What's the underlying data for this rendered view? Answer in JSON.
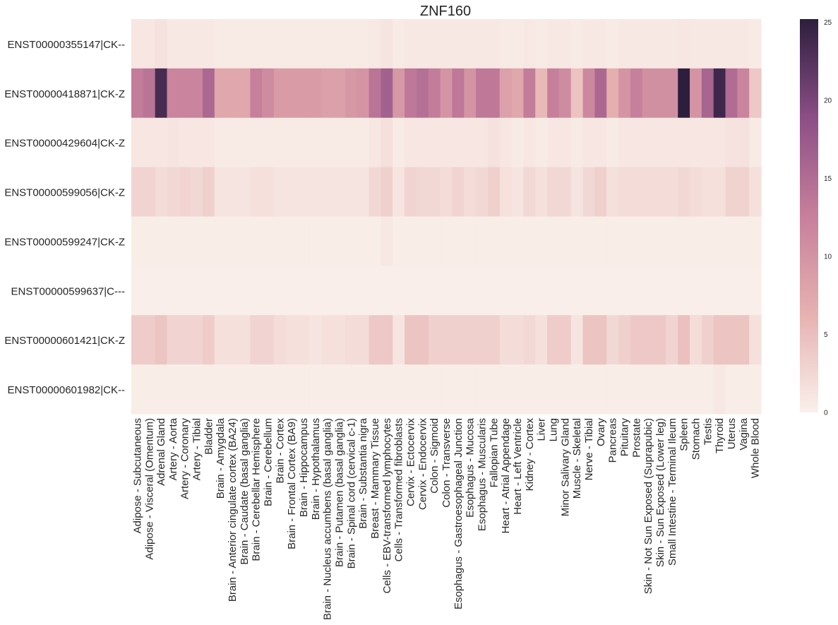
{
  "chart_data": {
    "type": "heatmap",
    "title": "ZNF160",
    "xlabel": "",
    "ylabel": "",
    "colorbar": {
      "range": [
        0,
        25.2
      ],
      "ticks": [
        0,
        5,
        10,
        15,
        20,
        25
      ],
      "colors": [
        "#faf0eb",
        "#e6b1b0",
        "#c77f9b",
        "#8c4e86",
        "#2d1e3e"
      ]
    },
    "rows": [
      "ENST00000355147|CK--",
      "ENST00000418871|CK-Z",
      "ENST00000429604|CK-Z",
      "ENST00000599056|CK-Z",
      "ENST00000599247|CK-Z",
      "ENST00000599637|C---",
      "ENST00000601421|CK-Z",
      "ENST00000601982|CK--"
    ],
    "columns": [
      "Adipose - Subcutaneous",
      "Adipose - Visceral (Omentum)",
      "Adrenal Gland",
      "Artery - Aorta",
      "Artery - Coronary",
      "Artery - Tibial",
      "Bladder",
      "Brain - Amygdala",
      "Brain - Anterior cingulate cortex (BA24)",
      "Brain - Caudate (basal ganglia)",
      "Brain - Cerebellar Hemisphere",
      "Brain - Cerebellum",
      "Brain - Cortex",
      "Brain - Frontal Cortex (BA9)",
      "Brain - Hippocampus",
      "Brain - Hypothalamus",
      "Brain - Nucleus accumbens (basal ganglia)",
      "Brain - Putamen (basal ganglia)",
      "Brain - Spinal cord (cervical c-1)",
      "Brain - Substantia nigra",
      "Breast - Mammary Tissue",
      "Cells - EBV-transformed lymphocytes",
      "Cells - Transformed fibroblasts",
      "Cervix - Ectocervix",
      "Cervix - Endocervix",
      "Colon - Sigmoid",
      "Colon - Transverse",
      "Esophagus - Gastroesophageal Junction",
      "Esophagus - Mucosa",
      "Esophagus - Muscularis",
      "Fallopian Tube",
      "Heart - Atrial Appendage",
      "Heart - Left Ventricle",
      "Kidney - Cortex",
      "Liver",
      "Lung",
      "Minor Salivary Gland",
      "Muscle - Skeletal",
      "Nerve - Tibial",
      "Ovary",
      "Pancreas",
      "Pituitary",
      "Prostate",
      "Skin - Not Sun Exposed (Suprapubic)",
      "Skin - Sun Exposed (Lower leg)",
      "Small Intestine - Terminal Ileum",
      "Spleen",
      "Stomach",
      "Testis",
      "Thyroid",
      "Uterus",
      "Vagina",
      "Whole Blood"
    ],
    "values": [
      [
        1.0,
        1.0,
        1.5,
        0.8,
        0.8,
        0.8,
        0.8,
        0.6,
        0.6,
        0.6,
        0.6,
        0.6,
        0.6,
        0.6,
        0.6,
        0.6,
        0.6,
        0.6,
        0.6,
        0.6,
        0.8,
        1.2,
        0.6,
        0.8,
        0.8,
        0.8,
        0.8,
        0.8,
        0.8,
        0.8,
        0.8,
        0.6,
        0.6,
        0.8,
        0.6,
        0.8,
        0.8,
        0.6,
        0.8,
        0.8,
        0.6,
        0.8,
        0.8,
        0.8,
        0.8,
        0.8,
        1.0,
        0.8,
        0.8,
        0.8,
        0.8,
        0.8,
        0.6
      ],
      [
        13.0,
        14.0,
        23.5,
        12.0,
        12.0,
        12.0,
        15.5,
        7.5,
        7.5,
        7.5,
        12.5,
        11.0,
        9.0,
        9.0,
        9.0,
        9.0,
        8.5,
        8.5,
        9.5,
        10.0,
        14.0,
        16.5,
        9.5,
        13.5,
        14.5,
        13.0,
        10.0,
        13.5,
        10.0,
        13.5,
        13.5,
        8.5,
        7.5,
        13.0,
        5.5,
        12.5,
        11.0,
        4.5,
        11.5,
        15.5,
        6.5,
        10.0,
        12.5,
        10.5,
        10.5,
        10.5,
        25.2,
        10.0,
        16.0,
        24.0,
        15.0,
        12.0,
        4.0
      ],
      [
        1.0,
        1.0,
        1.0,
        1.2,
        1.0,
        1.0,
        1.0,
        0.5,
        0.5,
        0.5,
        0.5,
        0.5,
        0.5,
        0.5,
        0.5,
        0.5,
        0.5,
        0.5,
        0.5,
        0.5,
        1.0,
        1.6,
        0.6,
        1.0,
        1.0,
        1.0,
        1.0,
        1.0,
        1.0,
        1.0,
        1.5,
        1.0,
        0.6,
        1.0,
        0.6,
        1.0,
        1.0,
        0.6,
        1.0,
        1.0,
        0.6,
        1.0,
        1.0,
        1.0,
        1.0,
        1.0,
        1.0,
        1.0,
        1.0,
        1.0,
        1.3,
        1.5,
        0.6
      ],
      [
        2.8,
        2.8,
        2.0,
        2.4,
        2.8,
        2.4,
        3.2,
        1.2,
        1.2,
        1.2,
        1.6,
        1.6,
        1.2,
        1.2,
        1.2,
        1.2,
        1.2,
        1.2,
        1.2,
        1.2,
        2.4,
        3.2,
        1.2,
        2.8,
        2.4,
        2.4,
        2.0,
        2.8,
        2.0,
        2.4,
        3.2,
        1.6,
        1.2,
        2.4,
        1.6,
        2.4,
        2.4,
        1.2,
        2.4,
        3.2,
        1.6,
        2.0,
        2.0,
        2.0,
        2.0,
        2.0,
        2.4,
        2.0,
        1.6,
        1.6,
        3.0,
        3.0,
        1.6
      ],
      [
        0.3,
        0.3,
        0.3,
        0.3,
        0.3,
        0.3,
        0.3,
        0.3,
        0.3,
        0.3,
        0.3,
        0.3,
        0.3,
        0.3,
        0.3,
        0.3,
        0.3,
        0.3,
        0.3,
        0.3,
        0.3,
        0.8,
        0.3,
        0.3,
        0.3,
        0.3,
        0.3,
        0.3,
        0.3,
        0.3,
        0.3,
        0.3,
        0.3,
        0.3,
        0.3,
        0.3,
        0.3,
        0.3,
        0.3,
        0.3,
        0.3,
        0.3,
        0.3,
        0.3,
        0.3,
        0.3,
        0.3,
        0.3,
        0.3,
        0.3,
        0.3,
        0.3,
        0.3
      ],
      [
        0.2,
        0.2,
        0.2,
        0.2,
        0.2,
        0.2,
        0.2,
        0.2,
        0.2,
        0.2,
        0.2,
        0.2,
        0.2,
        0.2,
        0.2,
        0.2,
        0.2,
        0.2,
        0.2,
        0.2,
        0.2,
        0.2,
        0.2,
        0.2,
        0.2,
        0.2,
        0.2,
        0.2,
        0.2,
        0.2,
        0.2,
        0.2,
        0.2,
        0.2,
        0.2,
        0.2,
        0.2,
        0.2,
        0.2,
        0.2,
        0.2,
        0.2,
        0.2,
        0.2,
        0.2,
        0.2,
        0.2,
        0.2,
        0.2,
        0.2,
        0.2,
        0.2,
        0.2
      ],
      [
        3.6,
        3.6,
        4.4,
        2.8,
        2.8,
        2.8,
        3.6,
        1.6,
        1.6,
        1.6,
        2.8,
        2.8,
        2.0,
        1.6,
        1.6,
        1.2,
        1.6,
        1.6,
        2.0,
        2.0,
        4.0,
        4.0,
        1.2,
        4.4,
        4.4,
        3.2,
        3.2,
        3.2,
        3.2,
        3.2,
        3.2,
        2.0,
        2.0,
        2.4,
        1.6,
        3.6,
        3.6,
        1.2,
        4.4,
        4.4,
        2.4,
        3.2,
        4.0,
        4.0,
        4.0,
        2.8,
        4.8,
        2.0,
        3.2,
        4.4,
        4.4,
        4.4,
        1.6
      ],
      [
        0.3,
        0.3,
        0.3,
        0.3,
        0.3,
        0.3,
        0.3,
        0.3,
        0.3,
        0.3,
        0.3,
        0.3,
        0.3,
        0.3,
        0.3,
        0.3,
        0.3,
        0.3,
        0.3,
        0.3,
        0.3,
        0.3,
        0.3,
        0.3,
        0.3,
        0.3,
        0.3,
        0.3,
        0.3,
        0.3,
        0.3,
        0.3,
        0.3,
        0.3,
        0.3,
        0.3,
        0.3,
        0.3,
        0.3,
        0.3,
        0.3,
        0.3,
        0.3,
        0.3,
        0.3,
        0.3,
        0.3,
        0.3,
        0.3,
        0.8,
        0.3,
        0.3,
        0.3
      ]
    ]
  }
}
